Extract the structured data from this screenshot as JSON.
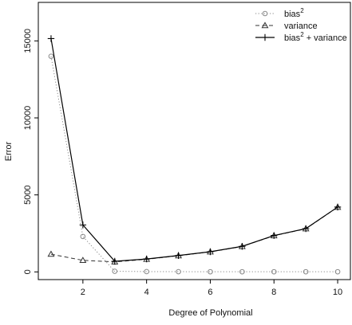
{
  "chart_data": {
    "type": "line",
    "title": "",
    "xlabel": "Degree of Polynomial",
    "ylabel": "Error",
    "x": [
      1,
      2,
      3,
      4,
      5,
      6,
      7,
      8,
      9,
      10
    ],
    "xlim": [
      0.6,
      10.4
    ],
    "ylim": [
      -500,
      17500
    ],
    "xticks": [
      2,
      4,
      6,
      8,
      10
    ],
    "yticks": [
      0,
      5000,
      10000,
      15000
    ],
    "grid": false,
    "legend_position": "top-right",
    "series": [
      {
        "name": "bias",
        "name_superscript": "2",
        "line_style": "dotted",
        "marker": "circle",
        "color": "#888888",
        "values": [
          14000,
          2300,
          40,
          20,
          15,
          10,
          10,
          10,
          10,
          10
        ]
      },
      {
        "name": "variance",
        "line_style": "dashed",
        "marker": "triangle",
        "color": "#333333",
        "values": [
          1150,
          750,
          650,
          820,
          1050,
          1300,
          1650,
          2350,
          2800,
          4200
        ]
      },
      {
        "name": "bias",
        "name_superscript": "2",
        "name_suffix": "+ variance",
        "line_style": "solid",
        "marker": "plus",
        "color": "#000000",
        "values": [
          15150,
          3050,
          690,
          840,
          1065,
          1310,
          1660,
          2360,
          2810,
          4210
        ]
      }
    ]
  }
}
